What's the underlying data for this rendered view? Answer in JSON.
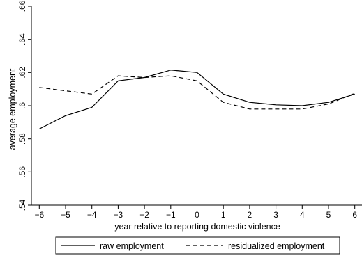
{
  "chart_data": {
    "type": "line",
    "xlabel": "year relative to reporting domestic violence",
    "ylabel": "average employment",
    "x": [
      -6,
      -5,
      -4,
      -3,
      -2,
      -1,
      0,
      1,
      2,
      3,
      4,
      5,
      6
    ],
    "x_tick_labels": [
      "−6",
      "−5",
      "−4",
      "−3",
      "−2",
      "−1",
      "0",
      "1",
      "2",
      "3",
      "4",
      "5",
      "6"
    ],
    "y_ticks": [
      0.54,
      0.56,
      0.58,
      0.6,
      0.62,
      0.64,
      0.66
    ],
    "y_tick_labels": [
      ".54",
      ".56",
      ".58",
      ".6",
      ".62",
      ".64",
      ".66"
    ],
    "xlim": [
      -6.3,
      6.3
    ],
    "ylim": [
      0.54,
      0.66
    ],
    "vertical_line_at": 0,
    "grid": false,
    "legend_position": "bottom",
    "series": [
      {
        "name": "raw employment",
        "style": "solid",
        "color": "#000000",
        "values": [
          0.586,
          0.594,
          0.599,
          0.615,
          0.617,
          0.6215,
          0.62,
          0.607,
          0.602,
          0.6005,
          0.6,
          0.602,
          0.607
        ]
      },
      {
        "name": "residualized employment",
        "style": "dashed",
        "color": "#000000",
        "values": [
          0.611,
          0.609,
          0.607,
          0.618,
          0.617,
          0.618,
          0.615,
          0.602,
          0.598,
          0.598,
          0.598,
          0.601,
          0.6075
        ]
      }
    ]
  }
}
